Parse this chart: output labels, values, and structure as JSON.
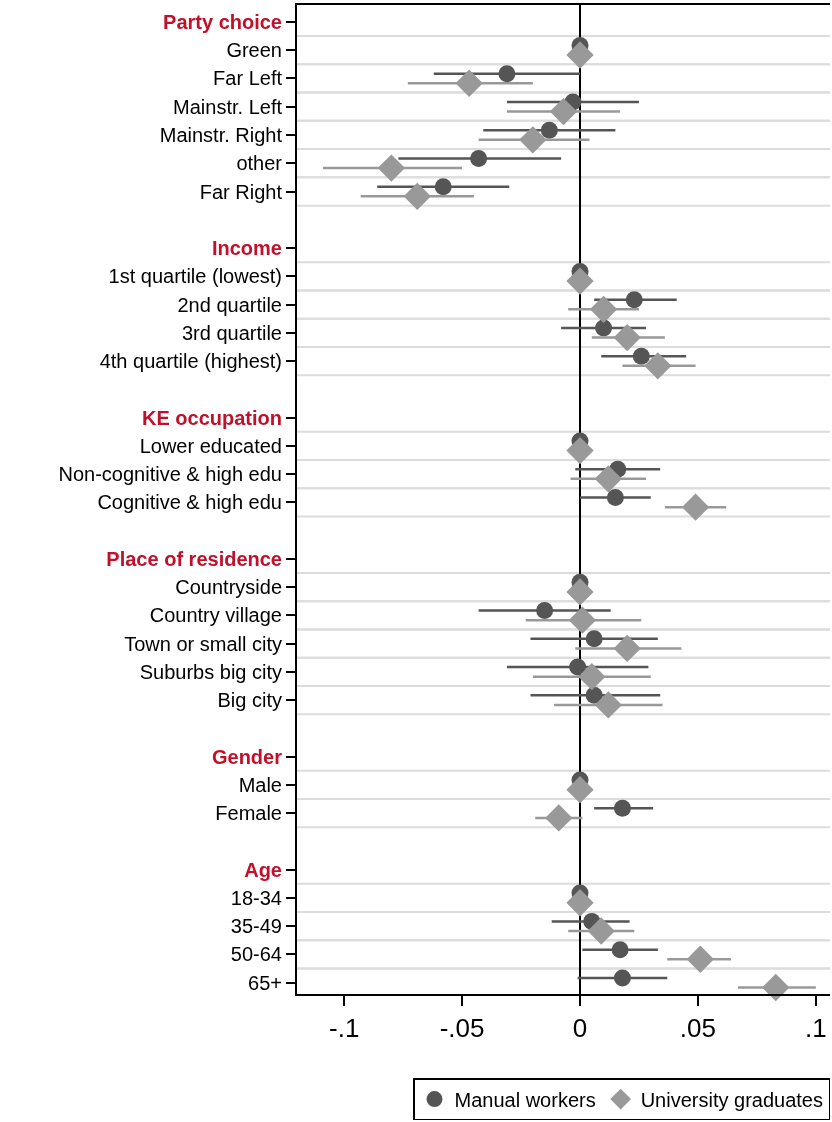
{
  "chart_data": {
    "type": "scatter",
    "orientation": "horizontal",
    "categories": [
      "Party choice",
      "Green",
      "Far Left",
      "Mainstr. Left",
      "Mainstr. Right",
      "other",
      "Far Right",
      null,
      "Income",
      "1st quartile (lowest)",
      "2nd quartile",
      "3rd quartile",
      "4th quartile (highest)",
      null,
      "KE occupation",
      "Lower educated",
      "Non-cognitive & high edu",
      "Cognitive & high edu",
      null,
      "Place of residence",
      "Countryside",
      "Country village",
      "Town or small city",
      "Suburbs big city",
      "Big city",
      null,
      "Gender",
      "Male",
      "Female",
      null,
      "Age",
      "18-34",
      "35-49",
      "50-64",
      "65+"
    ],
    "series": [
      {
        "name": "Manual workers",
        "color": "#555555",
        "marker": "circle",
        "values": [
          null,
          0,
          -0.031,
          -0.003,
          -0.013,
          -0.043,
          -0.058,
          null,
          null,
          0,
          0.023,
          0.01,
          0.026,
          null,
          null,
          0,
          0.016,
          0.015,
          null,
          null,
          0,
          -0.015,
          0.006,
          -0.001,
          0.006,
          null,
          null,
          0,
          0.018,
          null,
          null,
          0,
          0.005,
          0.017,
          0.018
        ],
        "errors": [
          null,
          null,
          [
            -0.062,
            0.0
          ],
          [
            -0.031,
            0.025
          ],
          [
            -0.041,
            0.015
          ],
          [
            -0.077,
            -0.008
          ],
          [
            -0.086,
            -0.03
          ],
          null,
          null,
          null,
          [
            0.006,
            0.041
          ],
          [
            -0.008,
            0.028
          ],
          [
            0.009,
            0.045
          ],
          null,
          null,
          null,
          [
            -0.002,
            0.034
          ],
          [
            0.0,
            0.03
          ],
          null,
          null,
          null,
          [
            -0.043,
            0.013
          ],
          [
            -0.021,
            0.033
          ],
          [
            -0.031,
            0.029
          ],
          [
            -0.021,
            0.034
          ],
          null,
          null,
          null,
          [
            0.006,
            0.031
          ],
          null,
          null,
          null,
          [
            -0.012,
            0.021
          ],
          [
            0.001,
            0.033
          ],
          [
            -0.001,
            0.037
          ]
        ]
      },
      {
        "name": "University graduates",
        "color": "#999999",
        "marker": "diamond",
        "values": [
          null,
          0,
          -0.047,
          -0.007,
          -0.02,
          -0.08,
          -0.069,
          null,
          null,
          0,
          0.01,
          0.02,
          0.033,
          null,
          null,
          0,
          0.012,
          0.049,
          null,
          null,
          0,
          0.001,
          0.02,
          0.005,
          0.012,
          null,
          null,
          0,
          -0.009,
          null,
          null,
          0,
          0.009,
          0.051,
          0.083
        ],
        "errors": [
          null,
          null,
          [
            -0.073,
            -0.02
          ],
          [
            -0.031,
            0.017
          ],
          [
            -0.043,
            0.004
          ],
          [
            -0.109,
            -0.05
          ],
          [
            -0.093,
            -0.045
          ],
          null,
          null,
          null,
          [
            -0.005,
            0.025
          ],
          [
            0.005,
            0.036
          ],
          [
            0.018,
            0.049
          ],
          null,
          null,
          null,
          [
            -0.004,
            0.028
          ],
          [
            0.036,
            0.062
          ],
          null,
          null,
          null,
          [
            -0.023,
            0.026
          ],
          [
            -0.002,
            0.043
          ],
          [
            -0.02,
            0.03
          ],
          [
            -0.011,
            0.035
          ],
          null,
          null,
          null,
          [
            -0.019,
            0.001
          ],
          null,
          null,
          null,
          [
            -0.005,
            0.023
          ],
          [
            0.037,
            0.064
          ],
          [
            0.067,
            0.1
          ]
        ]
      }
    ],
    "xlim": [
      -0.12,
      0.106
    ],
    "xticks": [
      {
        "value": -0.1,
        "label": "-.1"
      },
      {
        "value": -0.05,
        "label": "-.05"
      },
      0,
      {
        "value": 0.05,
        "label": ".05"
      },
      {
        "value": 0.1,
        "label": ".1"
      }
    ],
    "ref_lines": [
      {
        "axis": "x",
        "value": 0,
        "color": "#000000"
      }
    ],
    "grid": "y",
    "legend": "bottom"
  }
}
